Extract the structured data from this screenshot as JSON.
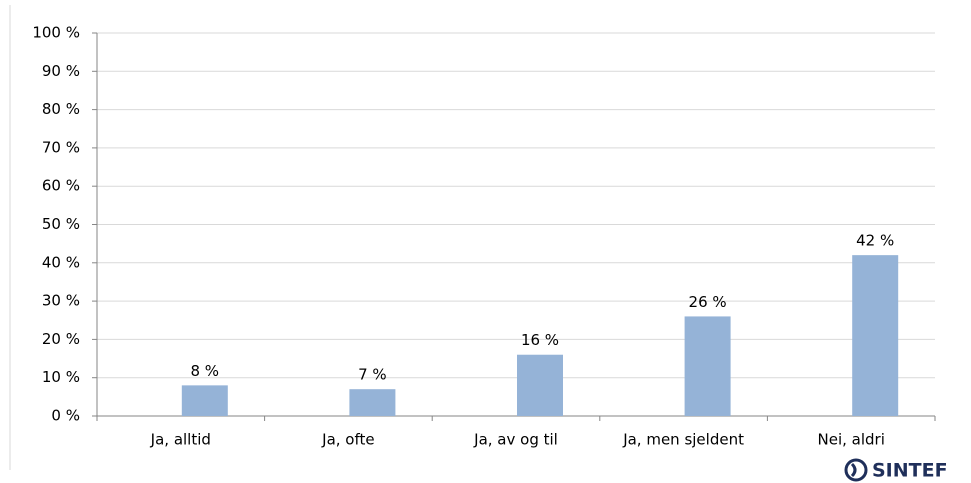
{
  "chart_data": {
    "type": "bar",
    "categories": [
      "Ja, alltid",
      "Ja, ofte",
      "Ja, av og til",
      "Ja, men sjeldent",
      "Nei, aldri"
    ],
    "values": [
      8,
      7,
      16,
      26,
      42
    ],
    "value_labels": [
      "8 %",
      "7 %",
      "16 %",
      "26 %",
      "42 %"
    ],
    "color": "#95b3d7",
    "ylim": [
      0,
      100
    ],
    "yticks": [
      {
        "value": 0,
        "label": "0 %"
      },
      {
        "value": 10,
        "label": "10 %"
      },
      {
        "value": 20,
        "label": "20 %"
      },
      {
        "value": 30,
        "label": "30 %"
      },
      {
        "value": 40,
        "label": "40 %"
      },
      {
        "value": 50,
        "label": "50 %"
      },
      {
        "value": 60,
        "label": "60 %"
      },
      {
        "value": 70,
        "label": "70 %"
      },
      {
        "value": 80,
        "label": "80 %"
      },
      {
        "value": 90,
        "label": "90 %"
      },
      {
        "value": 100,
        "label": "100 %"
      }
    ],
    "grid": true
  },
  "logo": "SINTEF"
}
